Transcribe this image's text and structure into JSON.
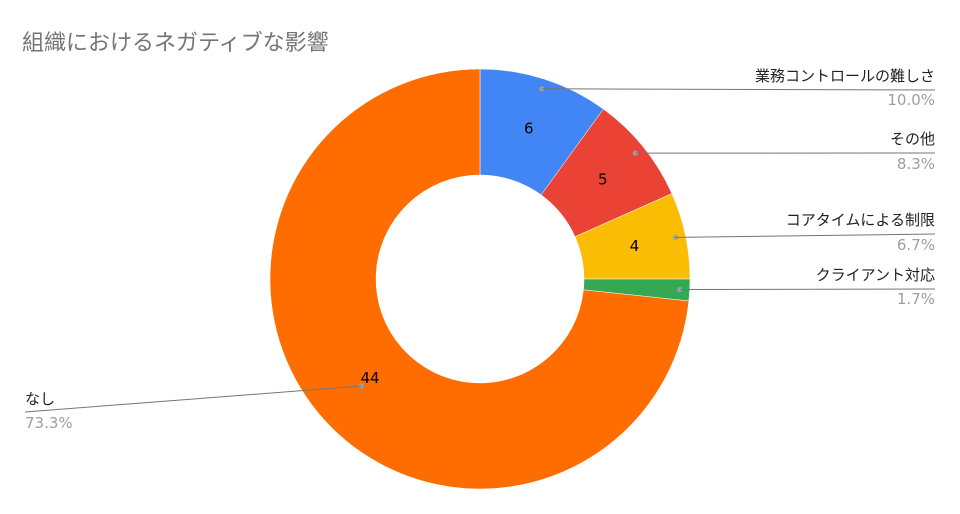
{
  "chart_data": {
    "type": "pie",
    "title": "組織におけるネガティブな影響",
    "donut": true,
    "slices": [
      {
        "label": "業務コントロールの難しさ",
        "value": 6,
        "percent": "10.0%",
        "color": "#4285F4"
      },
      {
        "label": "その他",
        "value": 5,
        "percent": "8.3%",
        "color": "#EA4335"
      },
      {
        "label": "コアタイムによる制限",
        "value": 4,
        "percent": "6.7%",
        "color": "#FBBC04"
      },
      {
        "label": "クライアント対応",
        "value": 1,
        "percent": "1.7%",
        "color": "#34A853"
      },
      {
        "label": "なし",
        "value": 44,
        "percent": "73.3%",
        "color": "#FF6D01"
      }
    ]
  }
}
